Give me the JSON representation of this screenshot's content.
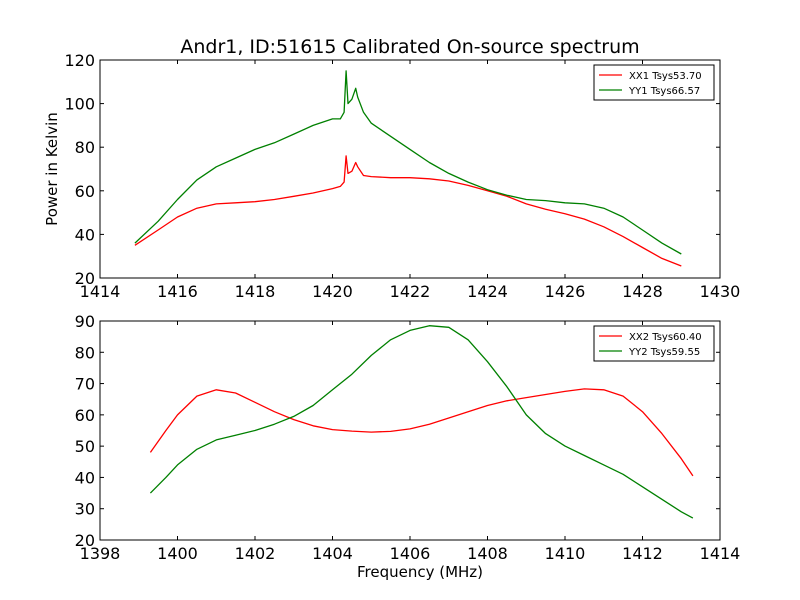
{
  "title": "Andr1, ID:51615 Calibrated On-source spectrum",
  "chart_data": [
    {
      "type": "line",
      "xlabel": "",
      "ylabel": "Power in Kelvin",
      "xlim": [
        1414,
        1430
      ],
      "ylim": [
        20,
        120
      ],
      "xticks": [
        "1414",
        "1416",
        "1418",
        "1420",
        "1422",
        "1424",
        "1426",
        "1428",
        "1430"
      ],
      "yticks": [
        "20",
        "40",
        "60",
        "80",
        "100",
        "120"
      ],
      "grid": false,
      "legend": "top-right",
      "series": [
        {
          "name": "XX1 Tsys53.70",
          "color": "#ff0000",
          "x": [
            1414.9,
            1415.5,
            1416,
            1416.5,
            1417,
            1417.5,
            1418,
            1418.5,
            1419,
            1419.5,
            1420,
            1420.2,
            1420.3,
            1420.35,
            1420.4,
            1420.5,
            1420.6,
            1420.65,
            1420.8,
            1421,
            1421.5,
            1422,
            1422.5,
            1423,
            1423.5,
            1424,
            1424.5,
            1425,
            1425.5,
            1426,
            1426.5,
            1427,
            1427.5,
            1428,
            1428.5,
            1429
          ],
          "y": [
            35,
            42,
            48,
            52,
            54,
            54.5,
            55,
            56,
            57.5,
            59,
            61,
            62,
            64,
            76,
            68,
            69,
            73,
            71,
            67,
            66.5,
            66,
            66,
            65.5,
            64.5,
            62.5,
            60,
            57.5,
            54,
            51.5,
            49.5,
            47,
            43.5,
            39,
            34,
            29,
            25.5
          ]
        },
        {
          "name": "YY1 Tsys66.57",
          "color": "#008000",
          "x": [
            1414.9,
            1415.5,
            1416,
            1416.5,
            1417,
            1417.5,
            1418,
            1418.5,
            1419,
            1419.5,
            1420,
            1420.2,
            1420.3,
            1420.35,
            1420.4,
            1420.5,
            1420.6,
            1420.65,
            1420.8,
            1421,
            1421.5,
            1422,
            1422.5,
            1423,
            1423.5,
            1424,
            1424.5,
            1425,
            1425.5,
            1426,
            1426.5,
            1427,
            1427.5,
            1428,
            1428.5,
            1429
          ],
          "y": [
            36,
            46,
            56,
            65,
            71,
            75,
            79,
            82,
            86,
            90,
            93,
            93,
            96,
            115,
            100,
            102,
            107,
            103,
            96,
            91,
            85,
            79,
            73,
            68,
            64,
            60.5,
            58,
            56,
            55.5,
            54.5,
            54,
            52,
            48,
            42,
            36,
            31
          ]
        }
      ]
    },
    {
      "type": "line",
      "xlabel": "Frequency (MHz)",
      "ylabel": "",
      "xlim": [
        1398,
        1414
      ],
      "ylim": [
        20,
        90
      ],
      "xticks": [
        "1398",
        "1400",
        "1402",
        "1404",
        "1406",
        "1408",
        "1410",
        "1412",
        "1414"
      ],
      "yticks": [
        "20",
        "30",
        "40",
        "50",
        "60",
        "70",
        "80",
        "90"
      ],
      "grid": false,
      "legend": "top-right",
      "series": [
        {
          "name": "XX2 Tsys60.40",
          "color": "#ff0000",
          "x": [
            1399.3,
            1399.7,
            1400,
            1400.5,
            1401,
            1401.5,
            1402,
            1402.5,
            1403,
            1403.5,
            1404,
            1404.5,
            1405,
            1405.5,
            1406,
            1406.5,
            1407,
            1407.5,
            1408,
            1408.5,
            1409,
            1409.5,
            1410,
            1410.5,
            1411,
            1411.5,
            1412,
            1412.5,
            1413,
            1413.3
          ],
          "y": [
            48,
            55,
            60,
            66,
            68,
            67,
            64,
            61,
            58.5,
            56.5,
            55.3,
            54.8,
            54.5,
            54.7,
            55.5,
            57,
            59,
            61,
            63,
            64.5,
            65.5,
            66.5,
            67.5,
            68.3,
            68,
            66,
            61,
            54,
            46,
            40.5
          ]
        },
        {
          "name": "YY2 Tsys59.55",
          "color": "#008000",
          "x": [
            1399.3,
            1399.7,
            1400,
            1400.5,
            1401,
            1401.5,
            1402,
            1402.5,
            1403,
            1403.5,
            1404,
            1404.5,
            1405,
            1405.5,
            1406,
            1406.5,
            1407,
            1407.5,
            1408,
            1408.5,
            1409,
            1409.5,
            1410,
            1410.5,
            1411,
            1411.5,
            1412,
            1412.5,
            1413,
            1413.3
          ],
          "y": [
            35,
            40,
            44,
            49,
            52,
            53.5,
            55,
            57,
            59.5,
            63,
            68,
            73,
            79,
            84,
            87,
            88.5,
            88,
            84,
            77,
            69,
            60,
            54,
            50,
            47,
            44,
            41,
            37,
            33,
            29,
            27
          ]
        }
      ]
    }
  ]
}
